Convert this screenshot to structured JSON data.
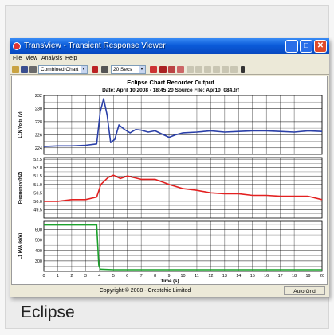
{
  "window": {
    "title": "TransView - Transient Response Viewer",
    "minimize": "_",
    "maximize": "□",
    "close": "✕"
  },
  "menu": [
    "File",
    "View",
    "Analysis",
    "Help"
  ],
  "toolbar": {
    "chart_mode": "Combined Chart",
    "time_window": "20 Secs"
  },
  "status": {
    "copyright": "Copyright © 2008 - Crestchic Limited",
    "grid_mode": "Auto Grid"
  },
  "caption": "Eclipse",
  "colors": {
    "series1": "#2a3fa8",
    "series2": "#e32020",
    "series3": "#1aa02a",
    "titlebar": "#0a5bd9"
  },
  "chart_data": {
    "type": "line",
    "title": "Eclipse Chart Recorder Output",
    "subtitle": "Date: April 10 2008  -  18:45:20    Source File: Apr10_084.trf",
    "xlabel": "Time (s)",
    "xlim": [
      0,
      20
    ],
    "x_ticks": [
      "0",
      "1",
      "2",
      "3",
      "4",
      "5",
      "6",
      "7",
      "8",
      "9",
      "10",
      "11",
      "12",
      "13",
      "14",
      "15",
      "16",
      "17",
      "18",
      "19",
      "20"
    ],
    "grid": true,
    "panels": [
      {
        "ylabel": "L1N Volts (v)",
        "ylim": [
          223,
          232
        ],
        "y_ticks": [
          "232",
          "230",
          "228",
          "226",
          "224"
        ],
        "series": [
          {
            "x": [
              0,
              1,
              2,
              3,
              3.8,
              4.05,
              4.3,
              4.55,
              4.8,
              5.1,
              5.4,
              5.8,
              6.2,
              6.6,
              7,
              7.5,
              8,
              8.5,
              9,
              9.5,
              10,
              11,
              12,
              13,
              14,
              15,
              16,
              17,
              18,
              19,
              20
            ],
            "y": [
              224.2,
              224.3,
              224.3,
              224.4,
              224.6,
              229.5,
              231.5,
              229,
              224.8,
              225.3,
              227.5,
              226.8,
              226.3,
              226.8,
              226.7,
              226.4,
              226.6,
              226.1,
              225.6,
              226,
              226.3,
              226.4,
              226.6,
              226.4,
              226.5,
              226.6,
              226.6,
              226.5,
              226.4,
              226.6,
              226.5
            ]
          }
        ]
      },
      {
        "ylabel": "Frequency (HZ)",
        "ylim": [
          49,
          52.6
        ],
        "y_ticks": [
          "52.5",
          "52.0",
          "51.5",
          "51.0",
          "50.5",
          "50.0",
          "49.5"
        ],
        "series": [
          {
            "x": [
              0,
              1,
              2,
              3,
              3.8,
              4.1,
              4.6,
              5,
              5.5,
              6,
              7,
              8,
              9,
              10,
              11,
              12,
              13,
              14,
              15,
              16,
              17,
              18,
              19,
              20
            ],
            "y": [
              50.0,
              50.0,
              50.1,
              50.1,
              50.25,
              51.0,
              51.4,
              51.55,
              51.35,
              51.5,
              51.3,
              51.3,
              51.0,
              50.75,
              50.65,
              50.5,
              50.45,
              50.45,
              50.35,
              50.35,
              50.3,
              50.3,
              50.3,
              50.1
            ]
          }
        ]
      },
      {
        "ylabel": "L1 kVA (kVA)",
        "ylim": [
          200,
          680
        ],
        "y_ticks": [
          "600",
          "500",
          "400",
          "300"
        ],
        "series": [
          {
            "x": [
              0,
              3.8,
              3.95,
              4.05,
              5,
              20
            ],
            "y": [
              645,
              645,
              260,
              220,
              215,
              215
            ]
          }
        ]
      }
    ]
  }
}
